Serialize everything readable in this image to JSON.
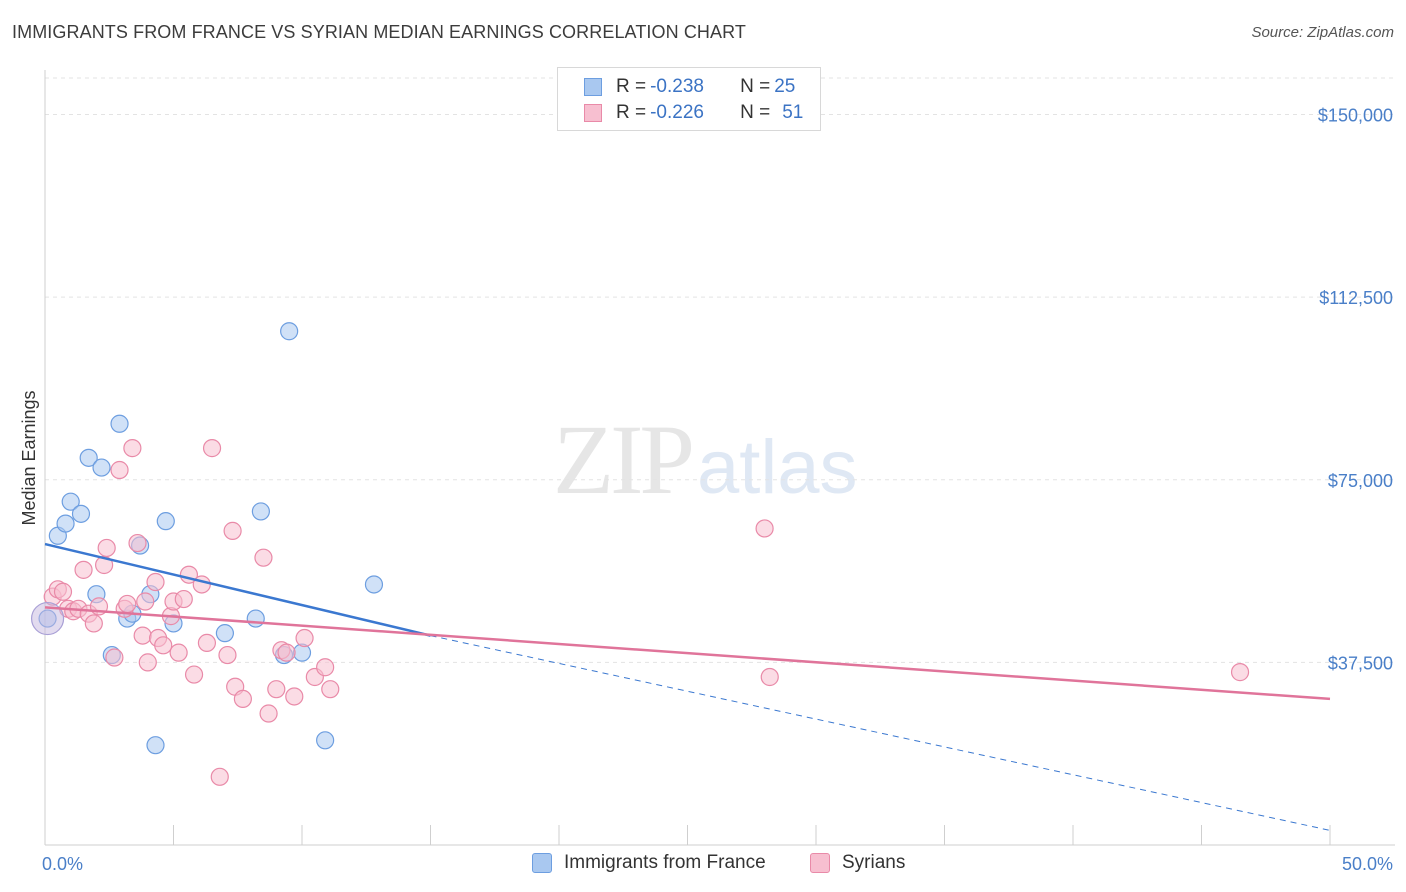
{
  "header": {
    "title": "IMMIGRANTS FROM FRANCE VS SYRIAN MEDIAN EARNINGS CORRELATION CHART",
    "source": "Source: ZipAtlas.com"
  },
  "watermark": {
    "zip": "ZIP",
    "atlas": "atlas"
  },
  "legend": {
    "rows": [
      {
        "r_label": "R = ",
        "r_value": "-0.238",
        "n_label": "N = ",
        "n_value": "25",
        "color": "#a9c8f0",
        "border": "#6d9ee0"
      },
      {
        "r_label": "R = ",
        "r_value": "-0.226",
        "n_label": "N = ",
        "n_value": "51",
        "color": "#f7bfd0",
        "border": "#e98aa8"
      }
    ]
  },
  "bottom_legend": {
    "items": [
      {
        "label": "Immigrants from France",
        "color": "#a9c8f0",
        "border": "#6d9ee0"
      },
      {
        "label": "Syrians",
        "color": "#f7bfd0",
        "border": "#e98aa8"
      }
    ]
  },
  "chart_data": {
    "type": "scatter",
    "title": "IMMIGRANTS FROM FRANCE VS SYRIAN MEDIAN EARNINGS CORRELATION CHART",
    "xlabel": "",
    "ylabel": "Median Earnings",
    "xlim": [
      0,
      50
    ],
    "ylim": [
      0,
      157500
    ],
    "x_tick_labels": [
      "0.0%",
      "50.0%"
    ],
    "y_ticks": [
      37500,
      75000,
      112500,
      150000
    ],
    "y_tick_labels": [
      "$37,500",
      "$75,000",
      "$112,500",
      "$150,000"
    ],
    "series": [
      {
        "name": "Immigrants from France",
        "color": "#6d9ee0",
        "fill": "#a9c8f0",
        "points": [
          [
            0.1,
            46500
          ],
          [
            0.5,
            63500
          ],
          [
            0.8,
            66000
          ],
          [
            1.0,
            70500
          ],
          [
            1.4,
            68000
          ],
          [
            1.7,
            79500
          ],
          [
            2.0,
            51500
          ],
          [
            2.2,
            77500
          ],
          [
            2.6,
            39000
          ],
          [
            2.9,
            86500
          ],
          [
            3.2,
            46500
          ],
          [
            3.4,
            47500
          ],
          [
            3.7,
            61500
          ],
          [
            4.1,
            51500
          ],
          [
            4.3,
            20500
          ],
          [
            4.7,
            66500
          ],
          [
            5.0,
            45500
          ],
          [
            7.0,
            43500
          ],
          [
            8.2,
            46500
          ],
          [
            8.4,
            68500
          ],
          [
            9.3,
            39000
          ],
          [
            9.5,
            105500
          ],
          [
            10.0,
            39500
          ],
          [
            10.9,
            21500
          ],
          [
            12.8,
            53500
          ]
        ],
        "trend": {
          "x": [
            0,
            15
          ],
          "y": [
            61800,
            43000
          ],
          "dash_to": [
            50,
            3000
          ]
        }
      },
      {
        "name": "Syrians",
        "color": "#e98aa8",
        "fill": "#f7bfd0",
        "points": [
          [
            0.3,
            51000
          ],
          [
            0.5,
            52500
          ],
          [
            0.7,
            52000
          ],
          [
            0.9,
            48500
          ],
          [
            1.1,
            48000
          ],
          [
            1.3,
            48500
          ],
          [
            1.5,
            56500
          ],
          [
            1.7,
            47500
          ],
          [
            1.9,
            45500
          ],
          [
            2.1,
            49000
          ],
          [
            2.3,
            57500
          ],
          [
            2.4,
            61000
          ],
          [
            2.7,
            38500
          ],
          [
            2.9,
            77000
          ],
          [
            3.1,
            48500
          ],
          [
            3.2,
            49500
          ],
          [
            3.4,
            81500
          ],
          [
            3.6,
            62000
          ],
          [
            3.8,
            43000
          ],
          [
            3.9,
            50000
          ],
          [
            4.0,
            37500
          ],
          [
            4.3,
            54000
          ],
          [
            4.4,
            42500
          ],
          [
            4.6,
            41000
          ],
          [
            4.9,
            47000
          ],
          [
            5.0,
            50000
          ],
          [
            5.2,
            39500
          ],
          [
            5.4,
            50500
          ],
          [
            5.6,
            55500
          ],
          [
            5.8,
            35000
          ],
          [
            6.1,
            53500
          ],
          [
            6.3,
            41500
          ],
          [
            6.5,
            81500
          ],
          [
            6.8,
            14000
          ],
          [
            7.1,
            39000
          ],
          [
            7.3,
            64500
          ],
          [
            7.4,
            32500
          ],
          [
            7.7,
            30000
          ],
          [
            8.5,
            59000
          ],
          [
            8.7,
            27000
          ],
          [
            9.0,
            32000
          ],
          [
            9.2,
            40000
          ],
          [
            9.4,
            39500
          ],
          [
            9.7,
            30500
          ],
          [
            10.1,
            42500
          ],
          [
            10.5,
            34500
          ],
          [
            10.9,
            36500
          ],
          [
            11.1,
            32000
          ],
          [
            28.0,
            65000
          ],
          [
            28.2,
            34500
          ],
          [
            46.5,
            35500
          ]
        ],
        "trend": {
          "x": [
            0,
            50
          ],
          "y": [
            48800,
            30000
          ]
        }
      }
    ]
  }
}
